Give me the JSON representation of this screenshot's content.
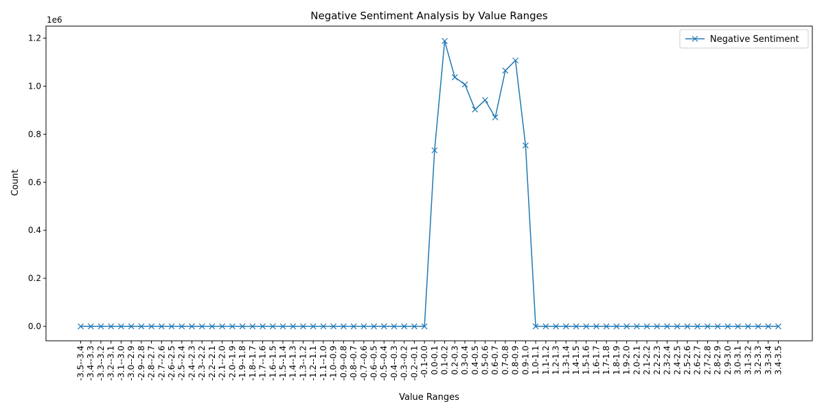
{
  "chart_data": {
    "type": "line",
    "title": "Negative Sentiment Analysis by Value Ranges",
    "xlabel": "Value Ranges",
    "ylabel": "Count",
    "y_offset_label": "1e6",
    "y_tick_values": [
      0,
      200000,
      400000,
      600000,
      800000,
      1000000,
      1200000
    ],
    "y_tick_labels": [
      "0.0",
      "0.2",
      "0.4",
      "0.6",
      "0.8",
      "1.0",
      "1.2"
    ],
    "ylim": [
      -60000,
      1250000
    ],
    "grid": false,
    "legend": {
      "placement": "top-right",
      "entries": [
        "Negative Sentiment"
      ]
    },
    "marker": "x",
    "colors": {
      "series": "#1f77b4"
    },
    "categories": [
      "-3.5--3.4",
      "-3.4--3.3",
      "-3.3--3.2",
      "-3.2--3.1",
      "-3.1--3.0",
      "-3.0--2.9",
      "-2.9--2.8",
      "-2.8--2.7",
      "-2.7--2.6",
      "-2.6--2.5",
      "-2.5--2.4",
      "-2.4--2.3",
      "-2.3--2.2",
      "-2.2--2.1",
      "-2.1--2.0",
      "-2.0--1.9",
      "-1.9--1.8",
      "-1.8--1.7",
      "-1.7--1.6",
      "-1.6--1.5",
      "-1.5--1.4",
      "-1.4--1.3",
      "-1.3--1.2",
      "-1.2--1.1",
      "-1.1--1.0",
      "-1.0--0.9",
      "-0.9--0.8",
      "-0.8--0.7",
      "-0.7--0.6",
      "-0.6--0.5",
      "-0.5--0.4",
      "-0.4--0.3",
      "-0.3--0.2",
      "-0.2--0.1",
      "-0.1-0.0",
      "0.0-0.1",
      "0.1-0.2",
      "0.2-0.3",
      "0.3-0.4",
      "0.4-0.5",
      "0.5-0.6",
      "0.6-0.7",
      "0.7-0.8",
      "0.8-0.9",
      "0.9-1.0",
      "1.0-1.1",
      "1.1-1.2",
      "1.2-1.3",
      "1.3-1.4",
      "1.4-1.5",
      "1.5-1.6",
      "1.6-1.7",
      "1.7-1.8",
      "1.8-1.9",
      "1.9-2.0",
      "2.0-2.1",
      "2.1-2.2",
      "2.2-2.3",
      "2.3-2.4",
      "2.4-2.5",
      "2.5-2.6",
      "2.6-2.7",
      "2.7-2.8",
      "2.8-2.9",
      "2.9-3.0",
      "3.0-3.1",
      "3.1-3.2",
      "3.2-3.3",
      "3.3-3.4",
      "3.4-3.5"
    ],
    "series": [
      {
        "name": "Negative Sentiment",
        "values": [
          0,
          0,
          0,
          0,
          0,
          0,
          0,
          0,
          0,
          0,
          0,
          0,
          0,
          0,
          0,
          0,
          0,
          0,
          0,
          0,
          0,
          0,
          0,
          0,
          0,
          0,
          0,
          0,
          0,
          0,
          0,
          0,
          0,
          0,
          0,
          733000,
          1188000,
          1037000,
          1007000,
          903000,
          942000,
          870000,
          1065000,
          1107000,
          753000,
          0,
          0,
          0,
          0,
          0,
          0,
          0,
          0,
          0,
          0,
          0,
          0,
          0,
          0,
          0,
          0,
          0,
          0,
          0,
          0,
          0,
          0,
          0,
          0,
          0
        ]
      }
    ]
  }
}
